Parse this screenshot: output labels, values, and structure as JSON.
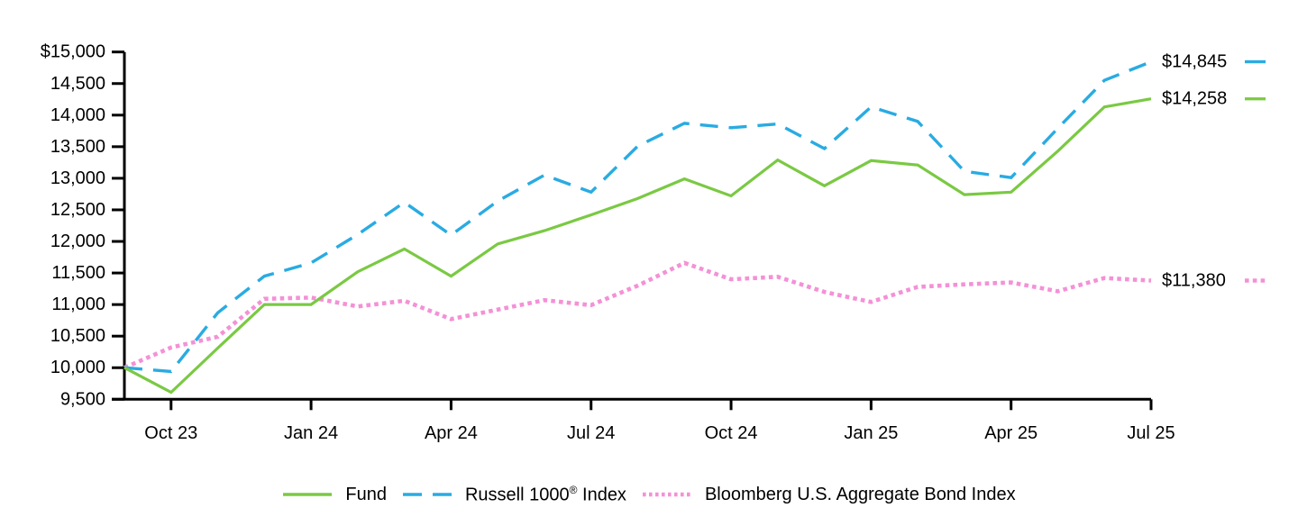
{
  "chart_data": {
    "type": "line",
    "title": "",
    "description": "Growth of $10,000 investment line chart",
    "x_tick_labels": [
      "Oct 23",
      "Jan 24",
      "Apr 24",
      "Jul 24",
      "Oct 24",
      "Jan 25",
      "Apr 25",
      "Jul 25"
    ],
    "x_tick_indices": [
      1,
      4,
      7,
      10,
      13,
      16,
      19,
      22
    ],
    "x_point_count": 23,
    "y_tick_values": [
      15000,
      14500,
      14000,
      13500,
      13000,
      12500,
      12000,
      11500,
      11000,
      10500,
      10000,
      9500
    ],
    "y_tick_labels": [
      "$15,000",
      "14,500",
      "14,000",
      "13,500",
      "13,000",
      "12,500",
      "12,000",
      "11,500",
      "11,000",
      "10,500",
      "10,000",
      "9,500"
    ],
    "ylim": [
      9500,
      15000
    ],
    "grid": false,
    "legend_position": "bottom",
    "axis_color": "#000000",
    "background_color": "#ffffff",
    "series": [
      {
        "name": "Fund",
        "name_base": "Fund",
        "name_sup": "",
        "name_rest": "",
        "style": "solid",
        "color": "#7AC943",
        "end_label": "$14,258",
        "values": [
          10000,
          9610,
          10310,
          11000,
          11000,
          11520,
          11880,
          11450,
          11960,
          12170,
          12420,
          12680,
          12990,
          12720,
          13290,
          12880,
          13280,
          13210,
          12740,
          12780,
          13430,
          14130,
          14258
        ]
      },
      {
        "name": "Russell 1000® Index",
        "name_base": "Russell 1000",
        "name_sup": "®",
        "name_rest": " Index",
        "style": "dashed",
        "color": "#29ABE2",
        "end_label": "$14,845",
        "values": [
          10000,
          9940,
          10870,
          11450,
          11660,
          12110,
          12620,
          12100,
          12640,
          13050,
          12780,
          13510,
          13870,
          13800,
          13860,
          13470,
          14130,
          13900,
          13110,
          13010,
          13790,
          14550,
          14845
        ]
      },
      {
        "name": "Bloomberg U.S. Aggregate Bond Index",
        "name_base": "Bloomberg U.S. Aggregate Bond Index",
        "name_sup": "",
        "name_rest": "",
        "style": "dotted",
        "color": "#F491D6",
        "end_label": "$11,380",
        "values": [
          10000,
          10320,
          10490,
          11090,
          11110,
          10970,
          11060,
          10770,
          10920,
          11070,
          10990,
          11300,
          11660,
          11400,
          11440,
          11200,
          11040,
          11280,
          11320,
          11350,
          11210,
          11420,
          11380
        ]
      }
    ]
  }
}
